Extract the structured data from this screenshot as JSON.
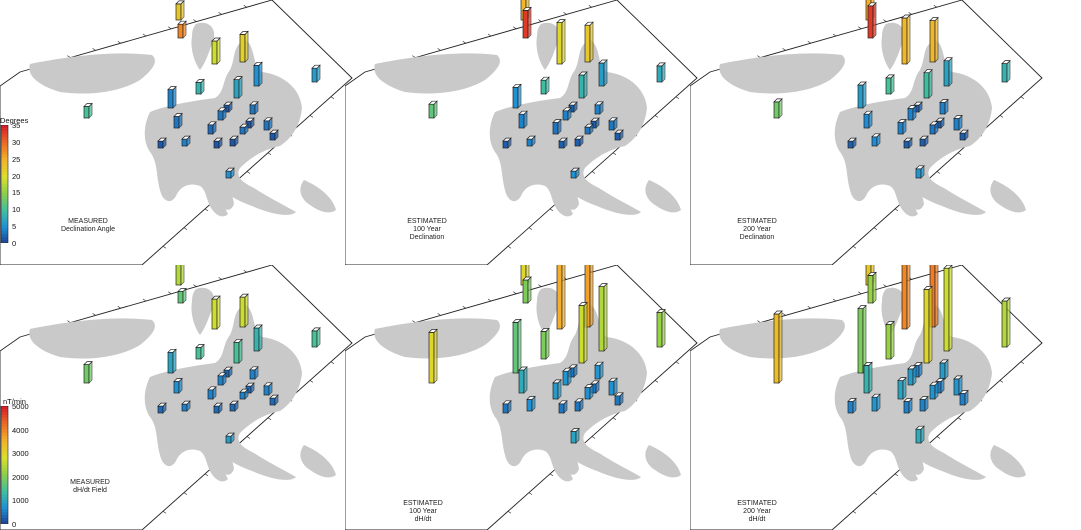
{
  "figure": {
    "panels": [
      {
        "id": "decl-measured",
        "caption": [
          "MEASURED",
          "Declination Angle"
        ],
        "scale": "declination",
        "bars": [
          {
            "v": 0.06,
            "c": 0.8
          },
          {
            "v": 0.1,
            "c": 0.55
          },
          {
            "v": 0.07,
            "c": 0.65
          },
          {
            "v": 0.12,
            "c": 0.62
          },
          {
            "v": 0.08,
            "c": 0.2
          },
          {
            "v": 0.09,
            "c": 0.15
          },
          {
            "v": 0.06,
            "c": 0.18
          },
          {
            "v": 0.05,
            "c": 0.25
          },
          {
            "v": 0.08,
            "c": 0.12
          },
          {
            "v": 0.05,
            "c": 0.1
          },
          {
            "v": 0.04,
            "c": 0.08
          },
          {
            "v": 0.04,
            "c": 0.1
          },
          {
            "v": 0.04,
            "c": 0.1
          },
          {
            "v": 0.03,
            "c": 0.1
          },
          {
            "v": 0.04,
            "c": 0.1
          },
          {
            "v": 0.03,
            "c": 0.05
          },
          {
            "v": 0.03,
            "c": 0.12
          },
          {
            "v": 0.03,
            "c": 0.05
          },
          {
            "v": 0.03,
            "c": 0.05
          },
          {
            "v": 0.05,
            "c": 0.3
          },
          {
            "v": 0.03,
            "c": 0.05
          },
          {
            "v": 0.03,
            "c": 0.15
          },
          {
            "v": 0.03,
            "c": 0.05
          },
          {
            "v": 0.03,
            "c": 0.05
          }
        ]
      },
      {
        "id": "decl-100",
        "caption": [
          "ESTIMATED",
          "100 Year",
          "Declination"
        ],
        "scale": "declination",
        "bars": [
          {
            "v": 0.12,
            "c": 0.95
          },
          {
            "v": 0.18,
            "c": 0.6
          },
          {
            "v": 0.1,
            "c": 0.7
          },
          {
            "v": 0.16,
            "c": 0.65
          },
          {
            "v": 0.1,
            "c": 0.25
          },
          {
            "v": 0.1,
            "c": 0.18
          },
          {
            "v": 0.07,
            "c": 0.22
          },
          {
            "v": 0.06,
            "c": 0.28
          },
          {
            "v": 0.09,
            "c": 0.15
          },
          {
            "v": 0.06,
            "c": 0.12
          },
          {
            "v": 0.05,
            "c": 0.1
          },
          {
            "v": 0.04,
            "c": 0.12
          },
          {
            "v": 0.04,
            "c": 0.12
          },
          {
            "v": 0.03,
            "c": 0.1
          },
          {
            "v": 0.04,
            "c": 0.1
          },
          {
            "v": 0.03,
            "c": 0.06
          },
          {
            "v": 0.03,
            "c": 0.12
          },
          {
            "v": 0.03,
            "c": 0.06
          },
          {
            "v": 0.03,
            "c": 0.06
          },
          {
            "v": 0.06,
            "c": 0.35
          },
          {
            "v": 0.03,
            "c": 0.06
          },
          {
            "v": 0.03,
            "c": 0.15
          },
          {
            "v": 0.03,
            "c": 0.06
          },
          {
            "v": 0.03,
            "c": 0.06
          }
        ]
      },
      {
        "id": "decl-200",
        "caption": [
          "ESTIMATED",
          "200 Year",
          "Declination"
        ],
        "scale": "declination",
        "bars": [
          {
            "v": 0.14,
            "c": 0.95
          },
          {
            "v": 0.2,
            "c": 0.7
          },
          {
            "v": 0.12,
            "c": 0.72
          },
          {
            "v": 0.18,
            "c": 0.7
          },
          {
            "v": 0.11,
            "c": 0.28
          },
          {
            "v": 0.11,
            "c": 0.2
          },
          {
            "v": 0.08,
            "c": 0.25
          },
          {
            "v": 0.07,
            "c": 0.3
          },
          {
            "v": 0.1,
            "c": 0.18
          },
          {
            "v": 0.06,
            "c": 0.14
          },
          {
            "v": 0.05,
            "c": 0.12
          },
          {
            "v": 0.05,
            "c": 0.12
          },
          {
            "v": 0.05,
            "c": 0.12
          },
          {
            "v": 0.04,
            "c": 0.1
          },
          {
            "v": 0.05,
            "c": 0.12
          },
          {
            "v": 0.03,
            "c": 0.06
          },
          {
            "v": 0.04,
            "c": 0.14
          },
          {
            "v": 0.03,
            "c": 0.06
          },
          {
            "v": 0.03,
            "c": 0.06
          },
          {
            "v": 0.07,
            "c": 0.38
          },
          {
            "v": 0.03,
            "c": 0.06
          },
          {
            "v": 0.04,
            "c": 0.16
          },
          {
            "v": 0.03,
            "c": 0.06
          },
          {
            "v": 0.03,
            "c": 0.06
          }
        ]
      },
      {
        "id": "dhdt-measured",
        "caption": [
          "MEASURED",
          "dH/dt Field"
        ],
        "scale": "dhdt",
        "bars": [
          {
            "v": 0.05,
            "c": 0.35
          },
          {
            "v": 0.13,
            "c": 0.55
          },
          {
            "v": 0.09,
            "c": 0.5
          },
          {
            "v": 0.13,
            "c": 0.55
          },
          {
            "v": 0.09,
            "c": 0.3
          },
          {
            "v": 0.1,
            "c": 0.25
          },
          {
            "v": 0.07,
            "c": 0.3
          },
          {
            "v": 0.05,
            "c": 0.3
          },
          {
            "v": 0.09,
            "c": 0.2
          },
          {
            "v": 0.05,
            "c": 0.15
          },
          {
            "v": 0.04,
            "c": 0.12
          },
          {
            "v": 0.04,
            "c": 0.12
          },
          {
            "v": 0.04,
            "c": 0.12
          },
          {
            "v": 0.03,
            "c": 0.12
          },
          {
            "v": 0.04,
            "c": 0.12
          },
          {
            "v": 0.03,
            "c": 0.08
          },
          {
            "v": 0.03,
            "c": 0.12
          },
          {
            "v": 0.03,
            "c": 0.08
          },
          {
            "v": 0.03,
            "c": 0.08
          },
          {
            "v": 0.08,
            "c": 0.38
          },
          {
            "v": 0.03,
            "c": 0.08
          },
          {
            "v": 0.03,
            "c": 0.18
          },
          {
            "v": 0.03,
            "c": 0.08
          },
          {
            "v": 0.03,
            "c": 0.08
          }
        ]
      },
      {
        "id": "dhdt-100",
        "caption": [
          "ESTIMATED",
          "100 Year",
          "dH/dt"
        ],
        "scale": "dhdt",
        "bars": [
          {
            "v": 0.1,
            "c": 0.4
          },
          {
            "v": 0.3,
            "c": 0.72
          },
          {
            "v": 0.2,
            "c": 0.6
          },
          {
            "v": 0.38,
            "c": 0.75
          },
          {
            "v": 0.25,
            "c": 0.55
          },
          {
            "v": 0.28,
            "c": 0.5
          },
          {
            "v": 0.15,
            "c": 0.45
          },
          {
            "v": 0.12,
            "c": 0.4
          },
          {
            "v": 0.22,
            "c": 0.35
          },
          {
            "v": 0.1,
            "c": 0.22
          },
          {
            "v": 0.07,
            "c": 0.18
          },
          {
            "v": 0.06,
            "c": 0.16
          },
          {
            "v": 0.06,
            "c": 0.16
          },
          {
            "v": 0.05,
            "c": 0.15
          },
          {
            "v": 0.06,
            "c": 0.15
          },
          {
            "v": 0.04,
            "c": 0.1
          },
          {
            "v": 0.05,
            "c": 0.15
          },
          {
            "v": 0.04,
            "c": 0.1
          },
          {
            "v": 0.04,
            "c": 0.1
          },
          {
            "v": 0.22,
            "c": 0.6
          },
          {
            "v": 0.04,
            "c": 0.1
          },
          {
            "v": 0.05,
            "c": 0.2
          },
          {
            "v": 0.04,
            "c": 0.1
          },
          {
            "v": 0.04,
            "c": 0.1
          }
        ]
      },
      {
        "id": "dhdt-200",
        "caption": [
          "ESTIMATED",
          "200 Year",
          "dH/dt"
        ],
        "scale": "dhdt",
        "bars": [
          {
            "v": 0.12,
            "c": 0.45
          },
          {
            "v": 0.45,
            "c": 0.8
          },
          {
            "v": 0.28,
            "c": 0.65
          },
          {
            "v": 0.58,
            "c": 0.82
          },
          {
            "v": 0.32,
            "c": 0.6
          },
          {
            "v": 0.36,
            "c": 0.55
          },
          {
            "v": 0.2,
            "c": 0.5
          },
          {
            "v": 0.15,
            "c": 0.45
          },
          {
            "v": 0.28,
            "c": 0.4
          },
          {
            "v": 0.12,
            "c": 0.25
          },
          {
            "v": 0.08,
            "c": 0.2
          },
          {
            "v": 0.07,
            "c": 0.18
          },
          {
            "v": 0.07,
            "c": 0.18
          },
          {
            "v": 0.06,
            "c": 0.16
          },
          {
            "v": 0.07,
            "c": 0.16
          },
          {
            "v": 0.05,
            "c": 0.12
          },
          {
            "v": 0.06,
            "c": 0.16
          },
          {
            "v": 0.05,
            "c": 0.12
          },
          {
            "v": 0.05,
            "c": 0.12
          },
          {
            "v": 0.3,
            "c": 0.68
          },
          {
            "v": 0.05,
            "c": 0.12
          },
          {
            "v": 0.06,
            "c": 0.22
          },
          {
            "v": 0.05,
            "c": 0.12
          },
          {
            "v": 0.05,
            "c": 0.12
          }
        ]
      }
    ],
    "colorbars": {
      "declination": {
        "title": "Degrees",
        "ticks": [
          "35",
          "30",
          "25",
          "20",
          "15",
          "10",
          "5",
          "0"
        ]
      },
      "dhdt": {
        "title": "nT/min",
        "ticks": [
          "5000",
          "4000",
          "3000",
          "2000",
          "1000",
          "0"
        ]
      }
    },
    "colors": {
      "land": "#c9c9c9",
      "frame": "#222222",
      "bar_outline": "#222222",
      "ramp": [
        "#1d3b8f",
        "#1e8fd6",
        "#3fbfa0",
        "#8bcf4a",
        "#d9df2b",
        "#f3b229",
        "#ec6b24",
        "#d8202a"
      ]
    }
  }
}
